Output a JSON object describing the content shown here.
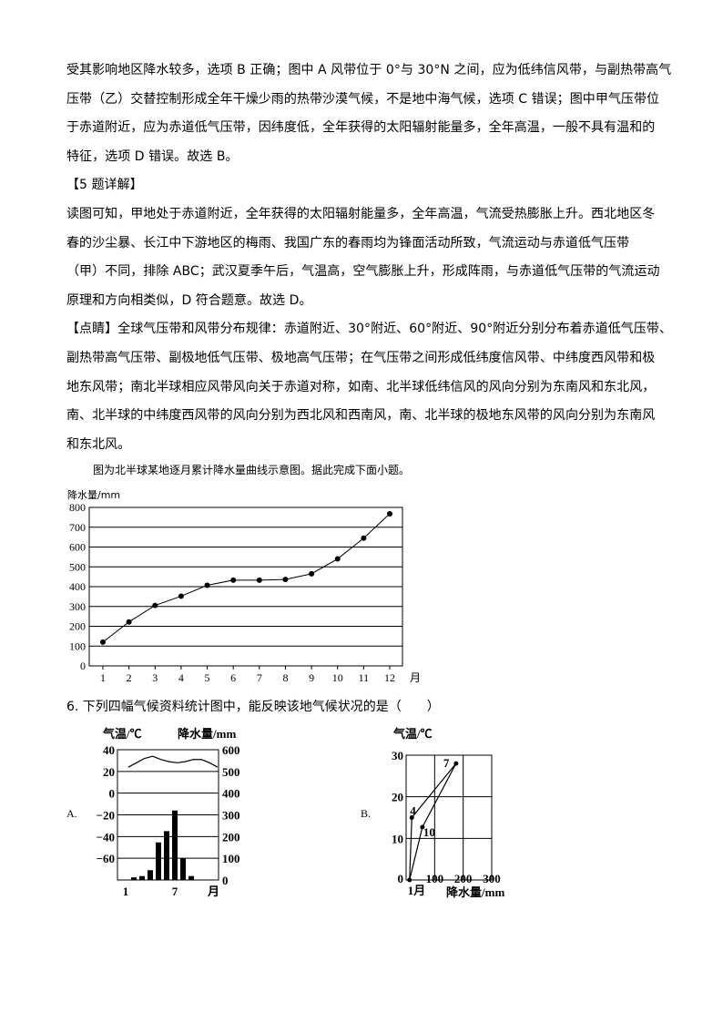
{
  "lines": [
    "受其影响地区降水较多，选项 B 正确；图中 A 风带位于 0°与 30°N 之间，应为低纬信风带，与副热带高气",
    "压带（乙）交替控制形成全年干燥少雨的热带沙漠气候，不是地中海气候，选项 C 错误；图中甲气压带位",
    "于赤道附近，应为赤道低气压带，因纬度低，全年获得的太阳辐射能量多，全年高温，一般不具有温和的",
    "特征，选项 D 错误。故选 B。",
    "【5 题详解】",
    "读图可知，甲地处于赤道附近，全年获得的太阳辐射能量多，全年高温，气流受热膨胀上升。西北地区冬",
    "春的沙尘暴、长江中下游地区的梅雨、我国广东的春雨均为锋面活动所致，气流运动与赤道低气压带",
    "（甲）不同，排除 ABC；武汉夏季午后，气温高，空气膨胀上升，形成阵雨，与赤道低气压带的气流运动",
    "原理和方向相类似，D 符合题意。故选 D。",
    "【点睛】全球气压带和风带分布规律：赤道附近、30°附近、60°附近、90°附近分别分布着赤道低气压带、",
    "副热带高气压带、副极地低气压带、极地高气压带；在气压带之间形成低纬度信风带、中纬度西风带和极",
    "地东风带；南北半球相应风带风向关于赤道对称，如南、北半球低纬信风的风向分别为东南风和东北风，",
    "南、北半球的中纬度西风带的风向分别为西北风和西南风，南、北半球的极地东风带的风向分别为东南风",
    "和东北风。"
  ],
  "caption": "图为北半球某地逐月累计降水量曲线示意图。据此完成下面小题。",
  "question": "6. 下列四幅气候资料统计图中，能反映该地气候状况的是（　　）",
  "option_a_label": "A.",
  "option_b_label": "B.",
  "chart_data": [
    {
      "type": "line",
      "ylabel": "降水量/mm",
      "xlabel": "月",
      "categories": [
        "1",
        "2",
        "3",
        "4",
        "5",
        "6",
        "7",
        "8",
        "9",
        "10",
        "11",
        "12"
      ],
      "values": [
        120,
        222,
        305,
        352,
        407,
        433,
        433,
        436,
        465,
        540,
        645,
        768
      ],
      "ylim": [
        0,
        800
      ],
      "yticks": [
        0,
        100,
        200,
        300,
        400,
        500,
        600,
        700,
        800
      ],
      "grid": true
    },
    {
      "type": "bar",
      "ylabel_left": "气温/℃",
      "ylabel_right": "降水量/mm",
      "xlabel": "月",
      "xtick_labels": [
        "1",
        "7"
      ],
      "months": [
        1,
        2,
        3,
        4,
        5,
        6,
        7,
        8,
        9,
        10,
        11,
        12
      ],
      "precipitation": [
        0,
        12,
        18,
        45,
        173,
        225,
        320,
        100,
        18,
        0,
        0,
        0
      ],
      "temperature_curve": [
        24,
        28,
        32,
        34,
        31,
        29,
        28,
        29,
        31,
        31,
        28,
        24
      ],
      "ylim_left": [
        -80,
        40
      ],
      "yticks_left": [
        40,
        20,
        0,
        -20,
        -40,
        -60
      ],
      "ylim_right": [
        0,
        600
      ],
      "yticks_right": [
        600,
        500,
        400,
        300,
        200,
        100,
        0
      ],
      "grid": true
    },
    {
      "type": "scatter",
      "ylabel": "气温/℃",
      "xlabel": "降水量/mm",
      "xlim": [
        0,
        300
      ],
      "xticks": [
        0,
        100,
        200,
        300
      ],
      "ylim": [
        0,
        30
      ],
      "yticks": [
        10,
        20,
        30
      ],
      "points": [
        {
          "label": "1月",
          "precipitation": 12,
          "temperature": 0
        },
        {
          "label": "4",
          "precipitation": 20,
          "temperature": 15
        },
        {
          "label": "7",
          "precipitation": 175,
          "temperature": 28
        },
        {
          "label": "10",
          "precipitation": 57,
          "temperature": 12.7
        }
      ],
      "grid": true
    }
  ]
}
